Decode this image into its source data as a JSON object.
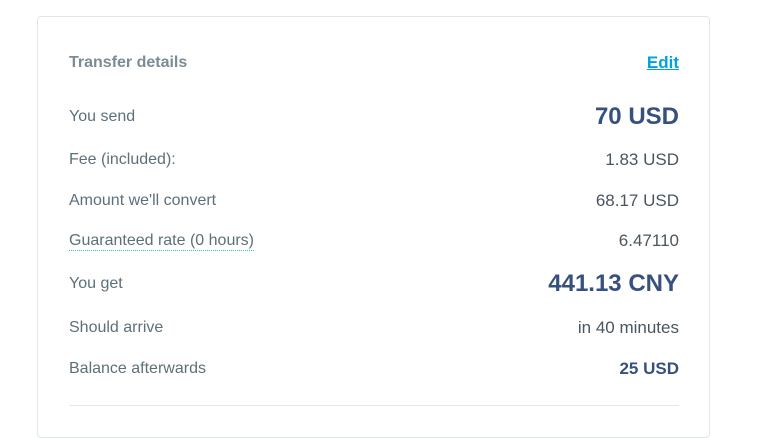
{
  "title": "Transfer details",
  "edit_label": "Edit",
  "rows": [
    {
      "label": "You send",
      "value": "70 USD"
    },
    {
      "label": "Fee (included):",
      "value": "1.83 USD"
    },
    {
      "label": "Amount we'll convert",
      "value": "68.17 USD"
    },
    {
      "label": "Guaranteed rate (0 hours)",
      "value": "6.47110"
    },
    {
      "label": "You get",
      "value": "441.13 CNY"
    },
    {
      "label": "Should arrive",
      "value": "in 40 minutes"
    },
    {
      "label": "Balance afterwards",
      "value": "25 USD"
    }
  ]
}
